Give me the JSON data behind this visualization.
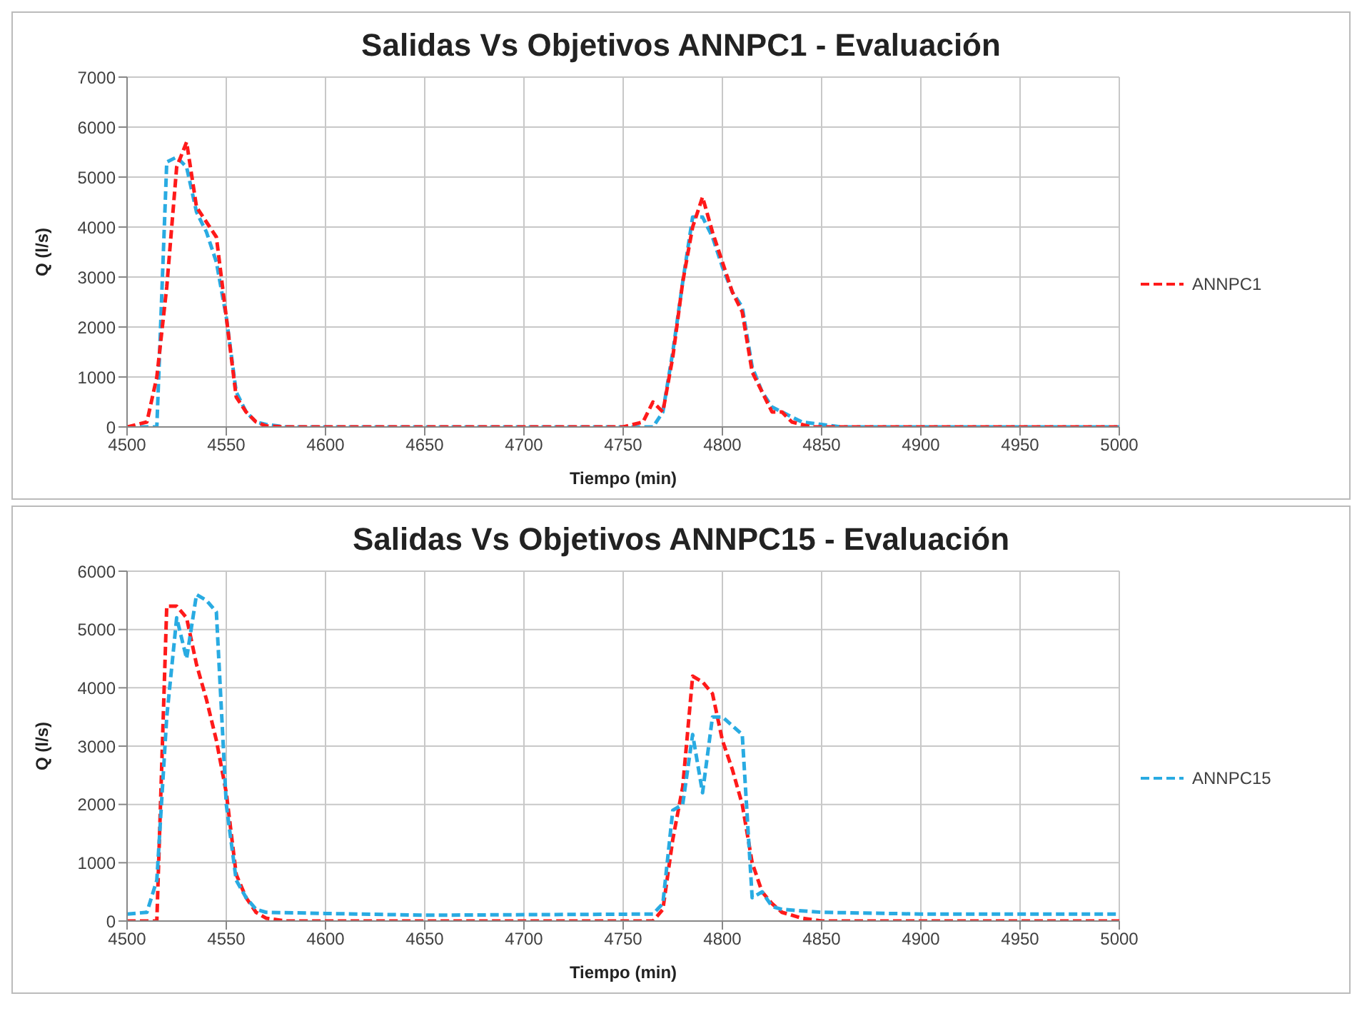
{
  "chart_data": [
    {
      "type": "line",
      "title": "Salidas Vs Objetivos ANNPC1 - Evaluación",
      "xlabel": "Tiempo (min)",
      "ylabel": "Q (l/s)",
      "xlim": [
        4500,
        5000
      ],
      "xticks": [
        4500,
        4550,
        4600,
        4650,
        4700,
        4750,
        4800,
        4850,
        4900,
        4950,
        5000
      ],
      "ylim": [
        0,
        7000
      ],
      "yticks": [
        0,
        1000,
        2000,
        3000,
        4000,
        5000,
        6000,
        7000
      ],
      "grid": true,
      "legend": "right",
      "line_style": "dashed",
      "marker": "none",
      "series": [
        {
          "color": "#29abe2",
          "x": [
            4500,
            4510,
            4515,
            4520,
            4525,
            4530,
            4535,
            4540,
            4545,
            4550,
            4555,
            4560,
            4565,
            4570,
            4580,
            4760,
            4765,
            4770,
            4775,
            4780,
            4785,
            4790,
            4795,
            4800,
            4805,
            4810,
            4815,
            4820,
            4825,
            4830,
            4840,
            4850,
            4860,
            5000
          ],
          "values": [
            0,
            0,
            0,
            5300,
            5400,
            5200,
            4300,
            3900,
            3300,
            2200,
            700,
            300,
            100,
            50,
            0,
            0,
            0,
            300,
            1500,
            2900,
            4200,
            4200,
            3800,
            3200,
            2700,
            2400,
            1200,
            700,
            400,
            300,
            100,
            50,
            0,
            0
          ]
        },
        {
          "name": "ANNPC1",
          "color": "#ff1a1a",
          "x": [
            4500,
            4510,
            4515,
            4520,
            4525,
            4530,
            4535,
            4540,
            4545,
            4550,
            4555,
            4560,
            4565,
            4570,
            4580,
            4750,
            4760,
            4765,
            4770,
            4775,
            4780,
            4785,
            4790,
            4795,
            4800,
            4805,
            4810,
            4815,
            4820,
            4825,
            4830,
            4835,
            4845,
            5000
          ],
          "values": [
            0,
            100,
            1000,
            2800,
            5200,
            5700,
            4400,
            4100,
            3800,
            2200,
            600,
            300,
            100,
            20,
            0,
            0,
            100,
            500,
            300,
            1400,
            2900,
            4000,
            4600,
            3900,
            3300,
            2700,
            2300,
            1100,
            700,
            300,
            300,
            100,
            0,
            0
          ]
        }
      ]
    },
    {
      "type": "line",
      "title": "Salidas Vs Objetivos ANNPC15 - Evaluación",
      "xlabel": "Tiempo (min)",
      "ylabel": "Q (l/s)",
      "xlim": [
        4500,
        5000
      ],
      "xticks": [
        4500,
        4550,
        4600,
        4650,
        4700,
        4750,
        4800,
        4850,
        4900,
        4950,
        5000
      ],
      "ylim": [
        0,
        6000
      ],
      "yticks": [
        0,
        1000,
        2000,
        3000,
        4000,
        5000,
        6000
      ],
      "grid": true,
      "legend": "right",
      "line_style": "dashed",
      "marker": "none",
      "series": [
        {
          "color": "#ff1a1a",
          "x": [
            4500,
            4510,
            4515,
            4520,
            4525,
            4530,
            4535,
            4540,
            4545,
            4550,
            4555,
            4560,
            4565,
            4570,
            4580,
            4765,
            4770,
            4775,
            4780,
            4785,
            4790,
            4795,
            4800,
            4805,
            4810,
            4815,
            4820,
            4825,
            4830,
            4840,
            4850,
            5000
          ],
          "values": [
            0,
            0,
            0,
            5400,
            5400,
            5200,
            4400,
            3800,
            3100,
            2200,
            800,
            400,
            150,
            50,
            0,
            0,
            200,
            1400,
            2300,
            4200,
            4100,
            3900,
            3100,
            2600,
            2000,
            1000,
            500,
            300,
            150,
            50,
            0,
            0
          ]
        },
        {
          "name": "ANNPC15",
          "color": "#29abe2",
          "x": [
            4500,
            4510,
            4515,
            4520,
            4525,
            4530,
            4535,
            4540,
            4545,
            4550,
            4555,
            4560,
            4565,
            4570,
            4600,
            4650,
            4765,
            4770,
            4775,
            4780,
            4785,
            4790,
            4795,
            4800,
            4810,
            4815,
            4820,
            4825,
            4830,
            4850,
            4900,
            5000
          ],
          "values": [
            120,
            150,
            700,
            3500,
            5200,
            4500,
            5600,
            5500,
            5300,
            2000,
            700,
            400,
            200,
            150,
            130,
            100,
            120,
            300,
            1900,
            2000,
            3200,
            2200,
            3500,
            3500,
            3200,
            400,
            500,
            250,
            200,
            150,
            120,
            120
          ]
        }
      ]
    }
  ]
}
